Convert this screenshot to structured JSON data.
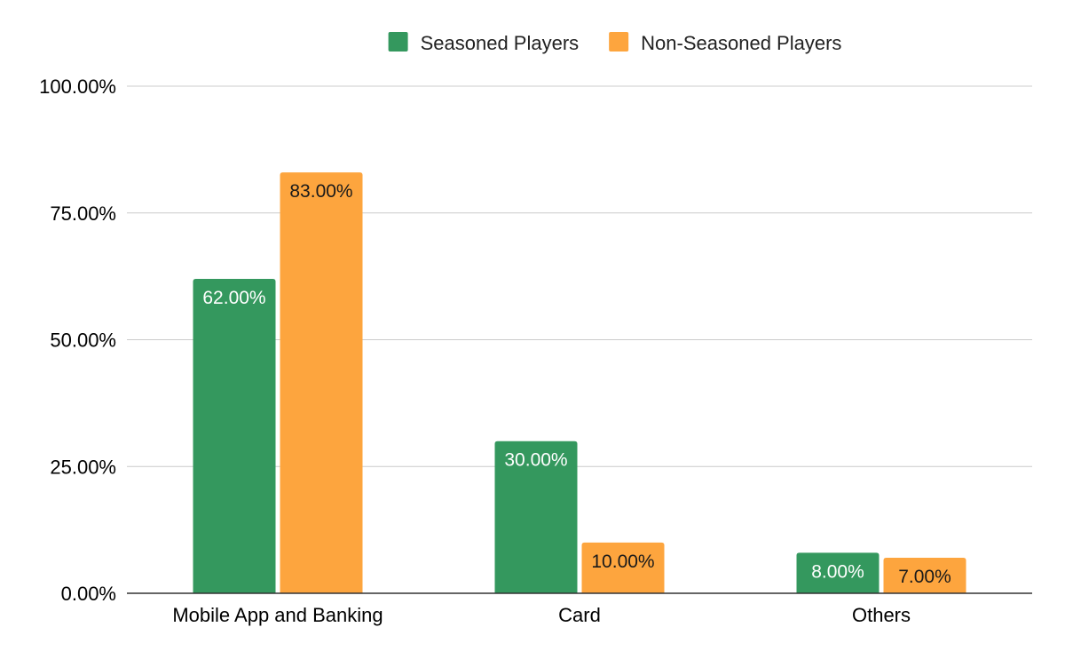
{
  "chart_data": {
    "type": "bar",
    "categories": [
      "Mobile App and Banking",
      "Card",
      "Others"
    ],
    "series": [
      {
        "name": "Seasoned Players",
        "values": [
          62,
          30,
          8
        ],
        "labels": [
          "62.00%",
          "30.00%",
          "8.00%"
        ],
        "color": "#34985E",
        "label_color": "#ffffff"
      },
      {
        "name": "Non-Seasoned Players",
        "values": [
          83,
          10,
          7
        ],
        "labels": [
          "83.00%",
          "10.00%",
          "7.00%"
        ],
        "color": "#FDA53E",
        "label_color": "#1a1a1a"
      }
    ],
    "y_ticks": [
      0,
      25,
      50,
      75,
      100
    ],
    "y_tick_labels": [
      "0.00%",
      "25.00%",
      "50.00%",
      "75.00%",
      "100.00%"
    ],
    "ylim": [
      0,
      100
    ],
    "grid": true,
    "legend": "top-center"
  }
}
